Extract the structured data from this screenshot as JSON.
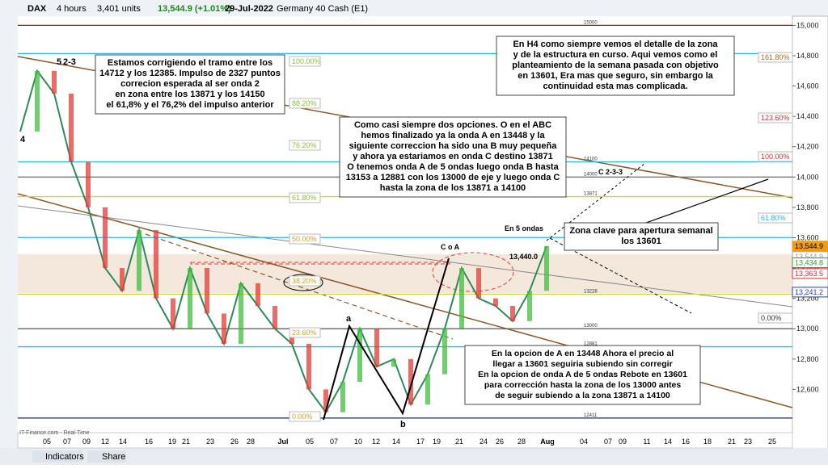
{
  "toolbar": {
    "symbol": "DAX",
    "timeframe": "4 hours",
    "units": "3,401 units",
    "price": "13,544.9 (+1.01%)",
    "date": "29-Jul-2022",
    "instrument": "Germany 40 Cash (E1)"
  },
  "chart": {
    "ylim": [
      12320,
      15050
    ],
    "yticks": [
      {
        "value": 15000,
        "label": "15,000"
      },
      {
        "value": 14800,
        "label": "14,800"
      },
      {
        "value": 14600,
        "label": "14,600"
      },
      {
        "value": 14400,
        "label": "14,400"
      },
      {
        "value": 14200,
        "label": "14,200"
      },
      {
        "value": 14000,
        "label": "14,000"
      },
      {
        "value": 13800,
        "label": "13,800"
      },
      {
        "value": 13600,
        "label": "13,600"
      },
      {
        "value": 13400,
        "label": "13,400"
      },
      {
        "value": 13200,
        "label": "13,200"
      },
      {
        "value": 13000,
        "label": "13,000"
      },
      {
        "value": 12800,
        "label": "12,800"
      },
      {
        "value": 12600,
        "label": "12,600"
      }
    ],
    "xlabels": [
      "05",
      "07",
      "09",
      "12",
      "14",
      "16",
      "19",
      "21",
      "23",
      "26",
      "28",
      "Jul",
      "05",
      "07",
      "10",
      "12",
      "14",
      "17",
      "19",
      "21",
      "24",
      "26",
      "28",
      "Aug",
      "04",
      "07",
      "09",
      "11",
      "14",
      "16",
      "18",
      "21",
      "23",
      "25"
    ],
    "price": [
      14300,
      14700,
      14550,
      14100,
      13800,
      13400,
      13250,
      13650,
      13200,
      13000,
      13400,
      13100,
      12900,
      13300,
      13150,
      13000,
      12900,
      12600,
      12450,
      12650,
      13000,
      12750,
      12800,
      12500,
      12700,
      13000,
      13400,
      13200,
      13150,
      13050,
      13250,
      13545
    ],
    "price_tags": [
      {
        "value": 13544.9,
        "label": "13,544.9",
        "color": "#f39c12"
      },
      {
        "value": 13544.9,
        "label": "13,544.9",
        "color": "#9e9e9e"
      },
      {
        "value": 13434.8,
        "label": "13,434.8",
        "color": "#2e9e2e"
      },
      {
        "value": 13363.5,
        "label": "13,363.5",
        "color": "#d32f2f"
      },
      {
        "value": 13241.2,
        "label": "13,241.2",
        "color": "#1f3fb0"
      }
    ],
    "levels": [
      {
        "value": 15000,
        "color": "#8b1a1a"
      },
      {
        "value": 14814,
        "color": "#29b6e6"
      },
      {
        "value": 14100,
        "color": "#29b6e6"
      },
      {
        "value": 14000,
        "color": "#777777"
      },
      {
        "value": 13871,
        "color": "#c8d84a"
      },
      {
        "value": 13601,
        "color": "#29b6e6"
      },
      {
        "value": 13228,
        "color": "#c8d84a"
      },
      {
        "value": 13000,
        "color": "#555555"
      },
      {
        "value": 12881,
        "color": "#29b6e6"
      },
      {
        "value": 12411,
        "color": "#1a237e"
      }
    ],
    "fib_left": [
      "100.00%",
      "88.20%",
      "76.20%",
      "61.80%",
      "50.00%",
      "38.20%",
      "23.60%",
      "0.00%"
    ],
    "fib_right": [
      "161.80%",
      "123.60%",
      "100.00%",
      "61.80%",
      "0.00%"
    ],
    "notes": [
      [
        "Estamos corrigiendo el tramo entre los",
        "14712 y los 12385. Impulso de 2327 puntos",
        "correcion esperada al ser onda 2",
        "en zona entre los 13871 y los 14150",
        "el 61,8% y el 76,2% del impulso anterior"
      ],
      [
        "En H4 como siempre vemos el detalle de la zona",
        "y de la estructura en curso. Aqui vemos como el",
        "planteamiento de la semana pasada con objetivo",
        "en 13601, Era mas que seguro, sin embargo la",
        "continuidad esta mas complicada."
      ],
      [
        "Como casi siempre dos opciones. O en el ABC",
        "hemos finalizado ya la onda A en 13448 y la",
        "siguiente correccion ha sido una B muy pequeña",
        "y ahora ya estariamos en onda C destino 13871",
        "O tenemos onda A de 5 ondas luego onda B hasta",
        "13153 a 12881 con los 13000 de eje y luego onda C",
        "hasta la zona de los 13871 a 14100"
      ],
      [
        "En la opcion de A en 13448 Ahora el precio al",
        "llegar a 13601 seguiria subiendo sin corregir",
        "En la opcion de onda A de 5 ondas Rebote en 13601",
        "para corrección hasta la zona de los 13000 antes",
        "de seguir subiendo a la zona 13871 a 14100"
      ],
      [
        "Zona clave para apertura semanal",
        "los 13601"
      ]
    ],
    "wave_labels": [
      "5",
      "2-3",
      "4",
      "a",
      "b",
      "C o A",
      "En 5 ondas",
      "C  2-3-3",
      "13,440.0"
    ]
  },
  "footer": {
    "indicators": "Indicators",
    "share": "Share",
    "source": "IT-Finance.com - Real-Time"
  }
}
